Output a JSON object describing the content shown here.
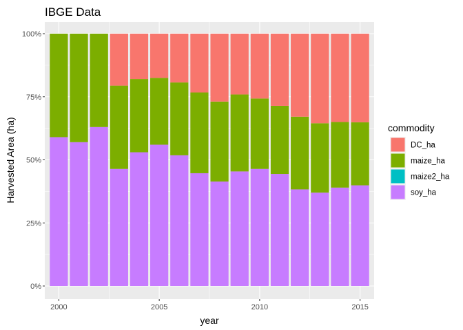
{
  "chart_data": {
    "type": "bar",
    "stacked": true,
    "position": "fill",
    "title": "IBGE Data",
    "xlabel": "year",
    "ylabel": "Harvested Area (ha)",
    "xlim": [
      1999.3,
      2015.7
    ],
    "ylim": [
      0,
      1
    ],
    "x_ticks": [
      2000,
      2005,
      2010,
      2015
    ],
    "x_tick_labels": [
      "2000",
      "2005",
      "2010",
      "2015"
    ],
    "y_ticks": [
      0,
      0.25,
      0.5,
      0.75,
      1.0
    ],
    "y_tick_labels": [
      "0%",
      "25%",
      "50%",
      "75%",
      "100%"
    ],
    "x": [
      2000,
      2001,
      2002,
      2003,
      2004,
      2005,
      2006,
      2007,
      2008,
      2009,
      2010,
      2011,
      2012,
      2013,
      2014,
      2015
    ],
    "series": [
      {
        "name": "DC_ha",
        "color": "#F8766D",
        "values": [
          0,
          0,
          0,
          0.206,
          0.18,
          0.175,
          0.193,
          0.233,
          0.269,
          0.241,
          0.257,
          0.286,
          0.329,
          0.355,
          0.35,
          0.351
        ]
      },
      {
        "name": "maize_ha",
        "color": "#7CAE00",
        "values": [
          0.41,
          0.43,
          0.37,
          0.33,
          0.29,
          0.265,
          0.289,
          0.32,
          0.317,
          0.305,
          0.279,
          0.27,
          0.288,
          0.275,
          0.26,
          0.25
        ]
      },
      {
        "name": "maize2_ha",
        "color": "#00BFC4",
        "values": [
          0,
          0,
          0,
          0,
          0,
          0,
          0,
          0,
          0,
          0,
          0,
          0,
          0,
          0,
          0,
          0
        ]
      },
      {
        "name": "soy_ha",
        "color": "#C77CFF",
        "values": [
          0.59,
          0.57,
          0.63,
          0.464,
          0.53,
          0.56,
          0.518,
          0.447,
          0.414,
          0.454,
          0.464,
          0.444,
          0.383,
          0.37,
          0.39,
          0.399
        ]
      }
    ],
    "legend": {
      "title": "commodity",
      "placement": "right",
      "entries": [
        "DC_ha",
        "maize_ha",
        "maize2_ha",
        "soy_ha"
      ]
    },
    "grid": true,
    "panel_color": "#EBEBEB",
    "grid_color": "#FFFFFF"
  }
}
